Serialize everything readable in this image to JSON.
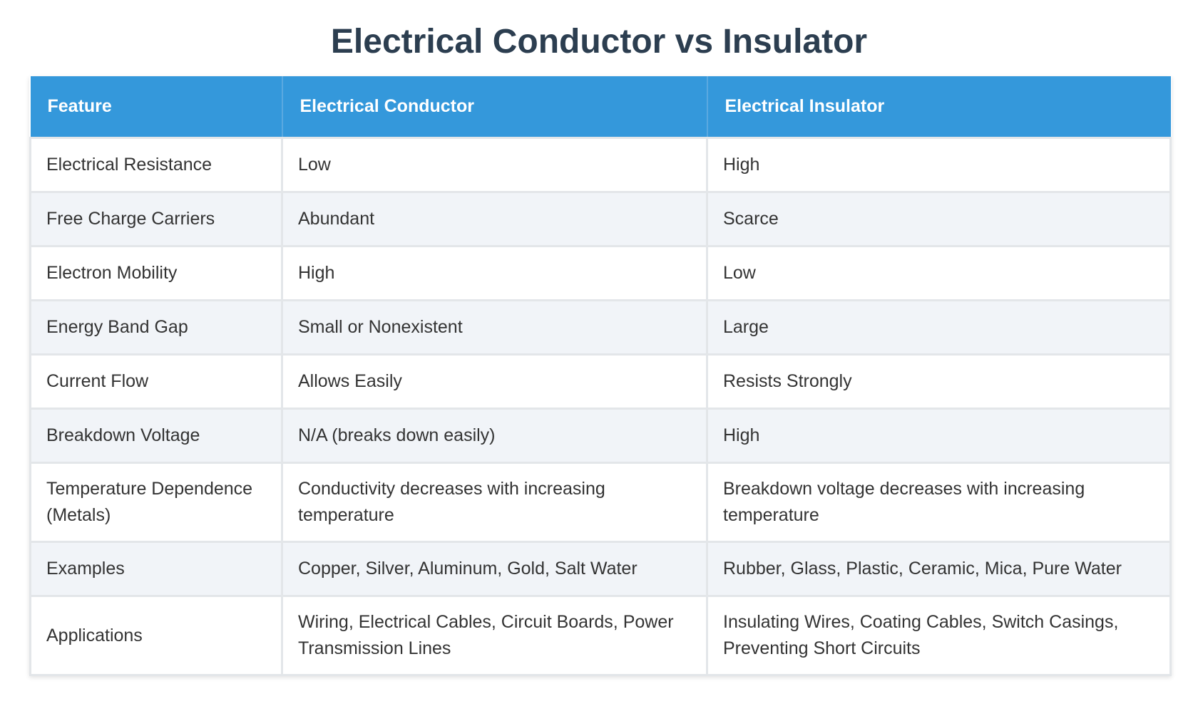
{
  "title": "Electrical Conductor vs Insulator",
  "table": {
    "headers": [
      "Feature",
      "Electrical Conductor",
      "Electrical Insulator"
    ],
    "rows": [
      [
        "Electrical Resistance",
        "Low",
        "High"
      ],
      [
        "Free Charge Carriers",
        "Abundant",
        "Scarce"
      ],
      [
        "Electron Mobility",
        "High",
        "Low"
      ],
      [
        "Energy Band Gap",
        "Small or Nonexistent",
        "Large"
      ],
      [
        "Current Flow",
        "Allows Easily",
        "Resists Strongly"
      ],
      [
        "Breakdown Voltage",
        "N/A (breaks down easily)",
        "High"
      ],
      [
        "Temperature Dependence (Metals)",
        "Conductivity decreases with increasing temperature",
        "Breakdown voltage decreases with increasing temperature"
      ],
      [
        "Examples",
        "Copper, Silver, Aluminum, Gold, Salt Water",
        "Rubber, Glass, Plastic, Ceramic, Mica, Pure Water"
      ],
      [
        "Applications",
        "Wiring, Electrical Cables, Circuit Boards, Power Transmission Lines",
        "Insulating Wires, Coating Cables, Switch Casings, Preventing Short Circuits"
      ]
    ]
  },
  "colors": {
    "title": "#2c3e50",
    "header_background": "#3498db",
    "header_text": "#ffffff",
    "row_alt_background": "#f1f4f8",
    "border": "#e3e6e9"
  }
}
